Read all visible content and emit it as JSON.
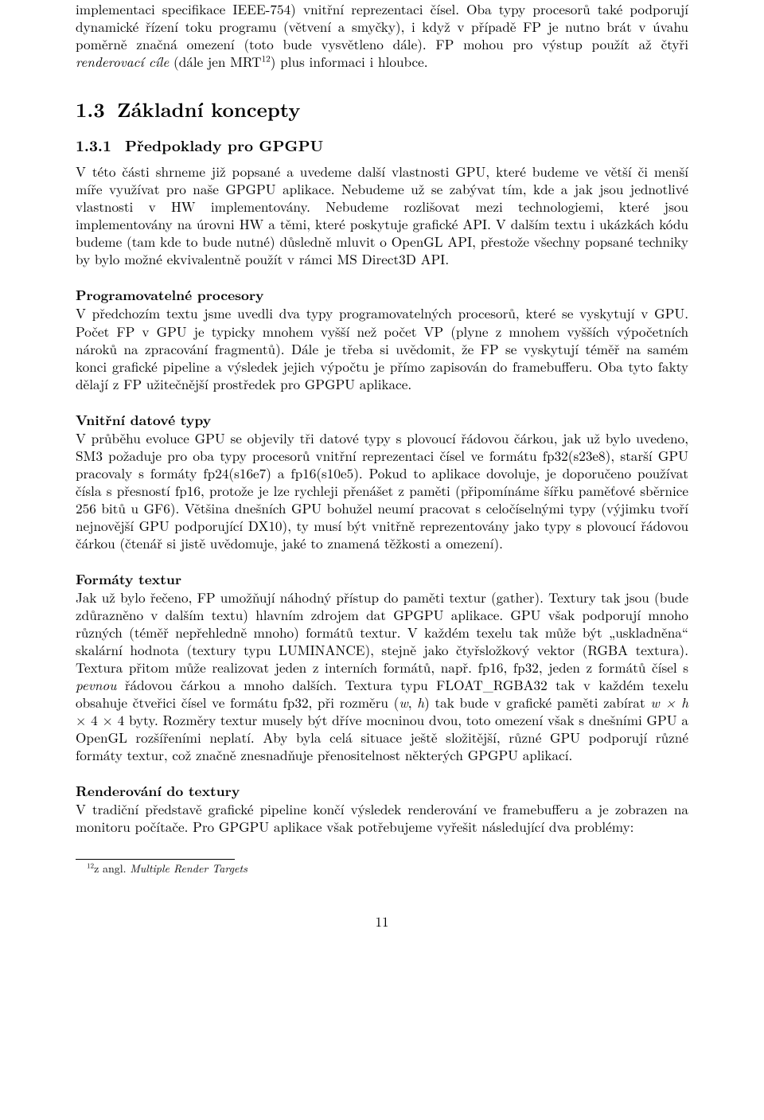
{
  "intro": {
    "text": "implementaci specifikace IEEE-754) vnitřní reprezentaci čísel. Oba typy procesorů také podporují dynamické řízení toku programu (větvení a smyčky), i když v případě FP je nutno brát v úvahu poměrně značná omezení (toto bude vysvětleno dále). FP mohou pro výstup použít až čtyři ",
    "rendercile": "renderovací cíle",
    "text2": " (dále jen MRT",
    "sup": "12",
    "text3": ") plus informaci i hloubce."
  },
  "s13": {
    "num": "1.3",
    "title": "Základní koncepty"
  },
  "s131": {
    "num": "1.3.1",
    "title": "Předpoklady pro GPGPU"
  },
  "p131": "V této části shrneme již popsané a uvedeme další vlastnosti GPU, které budeme ve větší či menší míře využívat pro naše GPGPU aplikace. Nebudeme už se zabývat tím, kde a jak jsou jednotlivé vlastnosti v HW implementovány. Nebudeme rozlišovat mezi technologiemi, které jsou implementovány na úrovni HW a těmi, které poskytuje grafické API. V dalším textu i ukázkách kódu budeme (tam kde to bude nutné) důsledně mluvit o OpenGL API, přestože všechny popsané techniky by bylo možné ekvivalentně použít v rámci MS Direct3D API.",
  "pp": {
    "title": "Programovatelné procesory",
    "text": "V předchozím textu jsme uvedli dva typy programovatelných procesorů, které se vyskytují v GPU. Počet FP v GPU je typicky mnohem vyšší než počet VP (plyne z mnohem vyšších výpočetních nároků na zpracování fragmentů). Dále je třeba si uvědomit, že FP se vyskytují téměř na samém konci grafické pipeline a výsledek jejich výpočtu je přímo zapisován do framebufferu. Oba tyto fakty dělají z FP užitečnější prostředek pro GPGPU aplikace."
  },
  "vdt": {
    "title": "Vnitřní datové typy",
    "text": "V průběhu evoluce GPU se objevily tři datové typy s plovoucí řádovou čárkou, jak už bylo uvedeno, SM3 požaduje pro oba typy procesorů vnitřní reprezentaci čísel ve formátu fp32(s23e8), starší GPU pracovaly s formáty fp24(s16e7) a fp16(s10e5). Pokud to aplikace dovoluje, je doporučeno používat čísla s přesností fp16, protože je lze rychleji přenášet z paměti (připomínáme šířku paměťové sběrnice 256 bitů u GF6). Většina dnešních GPU bohužel neumí pracovat s celočíselnými typy (výjimku tvoří nejnovější GPU podporující DX10), ty musí být vnitřně reprezentovány jako typy s plovoucí řádovou čárkou (čtenář si jistě uvědomuje, jaké to znamená těžkosti a omezení)."
  },
  "ft": {
    "title": "Formáty textur",
    "t1": "Jak už bylo řečeno, FP umožňují náhodný přístup do paměti textur (gather). Textury tak jsou (bude zdůrazněno v dalším textu) hlavním zdrojem dat GPGPU aplikace. GPU však podporují mnoho různých (téměř nepřehledně mnoho) formátů textur. V každém texelu tak může být „uskladněna“ skalární hodnota (textury typu LUMINANCE), stejně jako čtyřsložkový vektor (RGBA textura). Textura přitom může realizovat jeden z interních formátů, např. fp16, fp32, jeden z formátů čísel s ",
    "pevnou": "pevnou",
    "t2": " řádovou čárkou a mnoho dalších. Textura typu FLOAT_RGBA32 tak v každém texelu obsahuje čtveřici čísel ve formátu fp32, při rozměru (",
    "w": "w",
    "comma": ", ",
    "h": "h",
    "t3": ") tak bude v grafické paměti zabírat ",
    "expr1": "w × h",
    "t4": " × 4 × 4 byty. Rozměry textur musely být dříve mocninou dvou, toto omezení však s dnešními GPU a OpenGL rozšířeními neplatí. Aby byla celá situace ještě složitější, různé GPU podporují různé formáty textur, což značně znesnadňuje přenositelnost některých GPGPU aplikací."
  },
  "rdt": {
    "title": "Renderování do textury",
    "text": "V tradiční představě grafické pipeline končí výsledek renderování ve framebufferu a je zobrazen na monitoru počítače. Pro GPGPU aplikace však potřebujeme vyřešit následující dva problémy:"
  },
  "fn": {
    "num": "12",
    "pre": "z angl. ",
    "it": "Multiple Render Targets"
  },
  "page": "11"
}
